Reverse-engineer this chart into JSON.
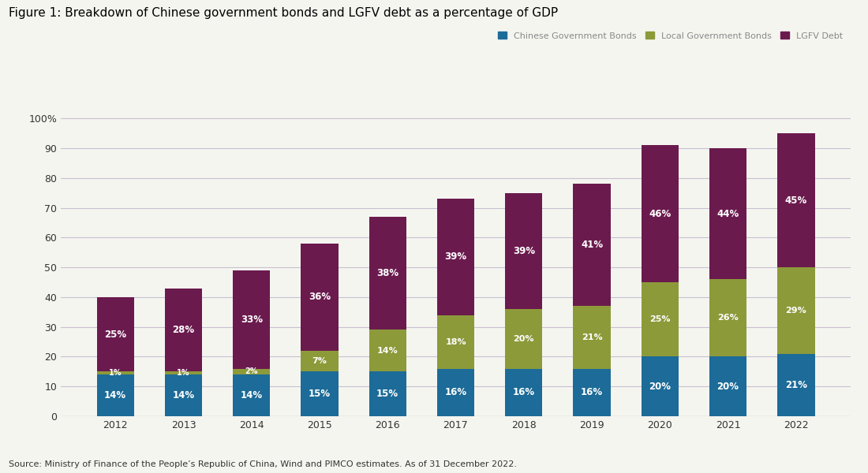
{
  "years": [
    2012,
    2013,
    2014,
    2015,
    2016,
    2017,
    2018,
    2019,
    2020,
    2021,
    2022
  ],
  "cgb": [
    14,
    14,
    14,
    15,
    15,
    16,
    16,
    16,
    20,
    20,
    21
  ],
  "lgb": [
    1,
    1,
    2,
    7,
    14,
    18,
    20,
    21,
    25,
    26,
    29
  ],
  "lgfv": [
    25,
    28,
    33,
    36,
    38,
    39,
    39,
    41,
    46,
    44,
    45
  ],
  "cgb_color": "#1c6b98",
  "lgb_color": "#8d9a3a",
  "lgfv_color": "#6b1a4e",
  "background_color": "#f5f5f0",
  "title": "Figure 1: Breakdown of Chinese government bonds and LGFV debt as a percentage of GDP",
  "source_text": "Source: Ministry of Finance of the People’s Republic of China, Wind and PIMCO estimates. As of 31 December 2022.",
  "legend_labels": [
    "Chinese Government Bonds",
    "Local Government Bonds",
    "LGFV Debt"
  ],
  "yticks": [
    0,
    10,
    20,
    30,
    40,
    50,
    60,
    70,
    80,
    90,
    100
  ],
  "ytick_labels": [
    "0",
    "10",
    "20",
    "30",
    "40",
    "50",
    "60",
    "70",
    "80",
    "90",
    "100%"
  ],
  "grid_color": "#c8c0d0",
  "title_fontsize": 11,
  "label_fontsize": 9,
  "bar_width": 0.55
}
